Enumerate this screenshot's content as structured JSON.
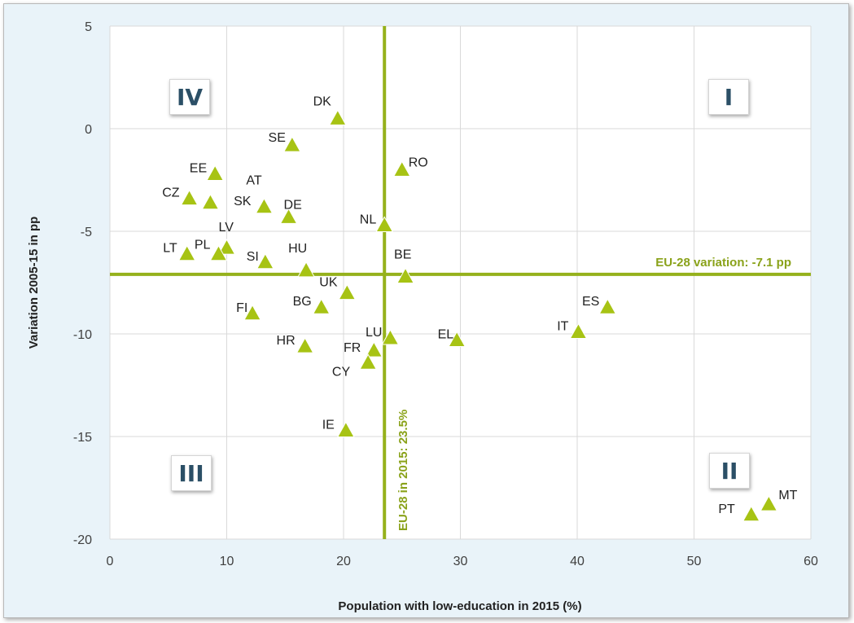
{
  "chart_data": {
    "type": "scatter",
    "xlabel": "Population with low-education in 2015 (%)",
    "ylabel": "Variation 2005-15 in pp",
    "xlim": [
      0,
      60
    ],
    "ylim": [
      -20,
      5
    ],
    "x_ticks": [
      "0",
      "10",
      "20",
      "30",
      "40",
      "50",
      "60"
    ],
    "y_ticks": [
      "5",
      "0",
      "-5",
      "-10",
      "-15",
      "-20"
    ],
    "grid": true,
    "marker": "triangle",
    "marker_color": "#a7c314",
    "reference_color": "#95b11b",
    "reference_lines": {
      "vertical": {
        "x": 23.5,
        "label": "EU-28 in 2015: 23.5%"
      },
      "horizontal": {
        "y": -7.1,
        "label": "EU-28 variation: -7.1 pp"
      }
    },
    "quadrants": [
      {
        "name": "top-left",
        "label": "IV"
      },
      {
        "name": "top-right",
        "label": "I"
      },
      {
        "name": "bottom-left",
        "label": "III"
      },
      {
        "name": "bottom-right",
        "label": "II"
      }
    ],
    "points": [
      {
        "label": "DK",
        "x": 19.5,
        "y": 0.5
      },
      {
        "label": "SE",
        "x": 15.6,
        "y": -0.8
      },
      {
        "label": "RO",
        "x": 25.0,
        "y": -2.0
      },
      {
        "label": "EE",
        "x": 9.0,
        "y": -2.2
      },
      {
        "label": "CZ",
        "x": 6.8,
        "y": -3.4
      },
      {
        "label": "SK",
        "x": 13.2,
        "y": -3.8
      },
      {
        "label": "AT",
        "x": 8.6,
        "y": -3.6
      },
      {
        "label": "DE",
        "x": 15.3,
        "y": -4.3
      },
      {
        "label": "NL",
        "x": 23.5,
        "y": -4.7
      },
      {
        "label": "LV",
        "x": 10.0,
        "y": -5.8
      },
      {
        "label": "LT",
        "x": 6.6,
        "y": -6.1
      },
      {
        "label": "PL",
        "x": 9.3,
        "y": -6.1
      },
      {
        "label": "SI",
        "x": 13.3,
        "y": -6.5
      },
      {
        "label": "HU",
        "x": 16.8,
        "y": -6.9
      },
      {
        "label": "BE",
        "x": 25.3,
        "y": -7.2
      },
      {
        "label": "UK",
        "x": 20.3,
        "y": -8.0
      },
      {
        "label": "BG",
        "x": 18.1,
        "y": -8.7
      },
      {
        "label": "FI",
        "x": 12.2,
        "y": -9.0
      },
      {
        "label": "ES",
        "x": 42.6,
        "y": -8.7
      },
      {
        "label": "IT",
        "x": 40.1,
        "y": -9.9
      },
      {
        "label": "LU",
        "x": 24.0,
        "y": -10.2
      },
      {
        "label": "EL",
        "x": 29.7,
        "y": -10.3
      },
      {
        "label": "HR",
        "x": 16.7,
        "y": -10.6
      },
      {
        "label": "FR",
        "x": 22.6,
        "y": -10.8
      },
      {
        "label": "CY",
        "x": 22.1,
        "y": -11.4
      },
      {
        "label": "IE",
        "x": 20.2,
        "y": -14.7
      },
      {
        "label": "MT",
        "x": 56.4,
        "y": -18.3
      },
      {
        "label": "PT",
        "x": 54.9,
        "y": -18.8
      }
    ]
  }
}
